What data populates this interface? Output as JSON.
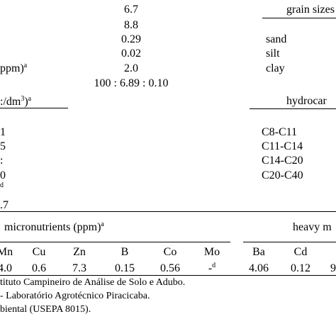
{
  "top_values": [
    "6.7",
    "8.8",
    "0.29",
    "0.02",
    "2.0",
    "100 : 6.89 : 0.10"
  ],
  "grain": {
    "header": "grain sizes",
    "rows": [
      "sand",
      "silt",
      "clay"
    ]
  },
  "left_labels": {
    "ppm_label": "ppm)",
    "ppm_sup": "a",
    "dm_label": ":/dm",
    "dm_exp": "3",
    "dm_close": ")",
    "dm_sup": "a",
    "row_a": "1",
    "row_b": "5",
    "row_c": ":",
    "row_d": "0",
    "row_d_sup": "d",
    "row_e": ".7"
  },
  "hydrocarbons": {
    "header": "hydrocar",
    "rows": [
      "C8-C11",
      "C11-C14",
      "C14-C20",
      "C20-C40"
    ]
  },
  "micronutrients": {
    "header": "micronutrients (ppm)",
    "header_sup": "a",
    "columns": [
      "Mn",
      "Cu",
      "Zn",
      "B",
      "Co",
      "Mo"
    ],
    "values": [
      "4.0",
      "0.6",
      "7.3",
      "0.15",
      "0.56",
      "-"
    ],
    "mo_sup": "d"
  },
  "heavy_metals": {
    "header": "heavy m",
    "columns": [
      "Ba",
      "Cd"
    ],
    "values": [
      "4.06",
      "0.12",
      "9"
    ]
  },
  "footnotes": [
    "tituto Campineiro de Análise de Solo e Adubo.",
    "- Laboratório Agrotécnico Piracicaba.",
    "biental (USEPA 8015)."
  ]
}
